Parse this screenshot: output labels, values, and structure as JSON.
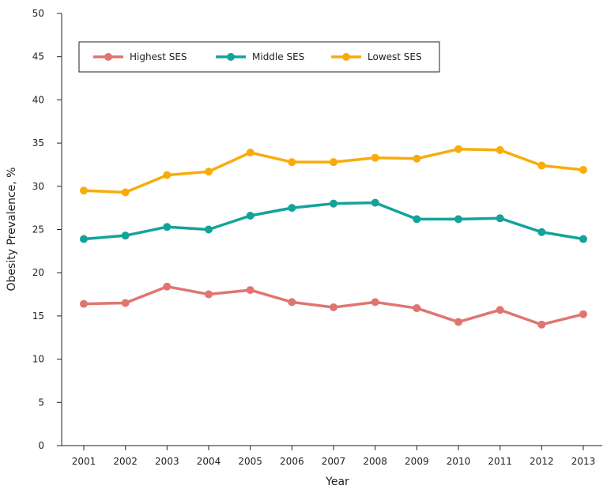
{
  "chart_data": {
    "type": "line",
    "title": "",
    "xlabel": "Year",
    "ylabel": "Obesity Prevalence, %",
    "ylim": [
      0,
      50
    ],
    "yticks": [
      0,
      5,
      10,
      15,
      20,
      25,
      30,
      35,
      40,
      45,
      50
    ],
    "grid": false,
    "legend_placement": "top-left",
    "x": [
      2001,
      2002,
      2003,
      2004,
      2005,
      2006,
      2007,
      2008,
      2009,
      2010,
      2011,
      2012,
      2013
    ],
    "series": [
      {
        "name": "Highest SES",
        "color": "#e07570",
        "values": [
          16.4,
          16.5,
          18.4,
          17.5,
          18.0,
          16.6,
          16.0,
          16.6,
          15.9,
          14.3,
          15.7,
          14.0,
          15.2
        ]
      },
      {
        "name": "Middle SES",
        "color": "#14a39a",
        "values": [
          23.9,
          24.3,
          25.3,
          25.0,
          26.6,
          27.5,
          28.0,
          28.1,
          26.2,
          26.2,
          26.3,
          24.7,
          23.9
        ]
      },
      {
        "name": "Lowest SES",
        "color": "#f8ac0c",
        "values": [
          29.5,
          29.3,
          31.3,
          31.7,
          33.9,
          32.8,
          32.8,
          33.3,
          33.2,
          34.3,
          34.2,
          32.4,
          31.9
        ]
      }
    ]
  }
}
